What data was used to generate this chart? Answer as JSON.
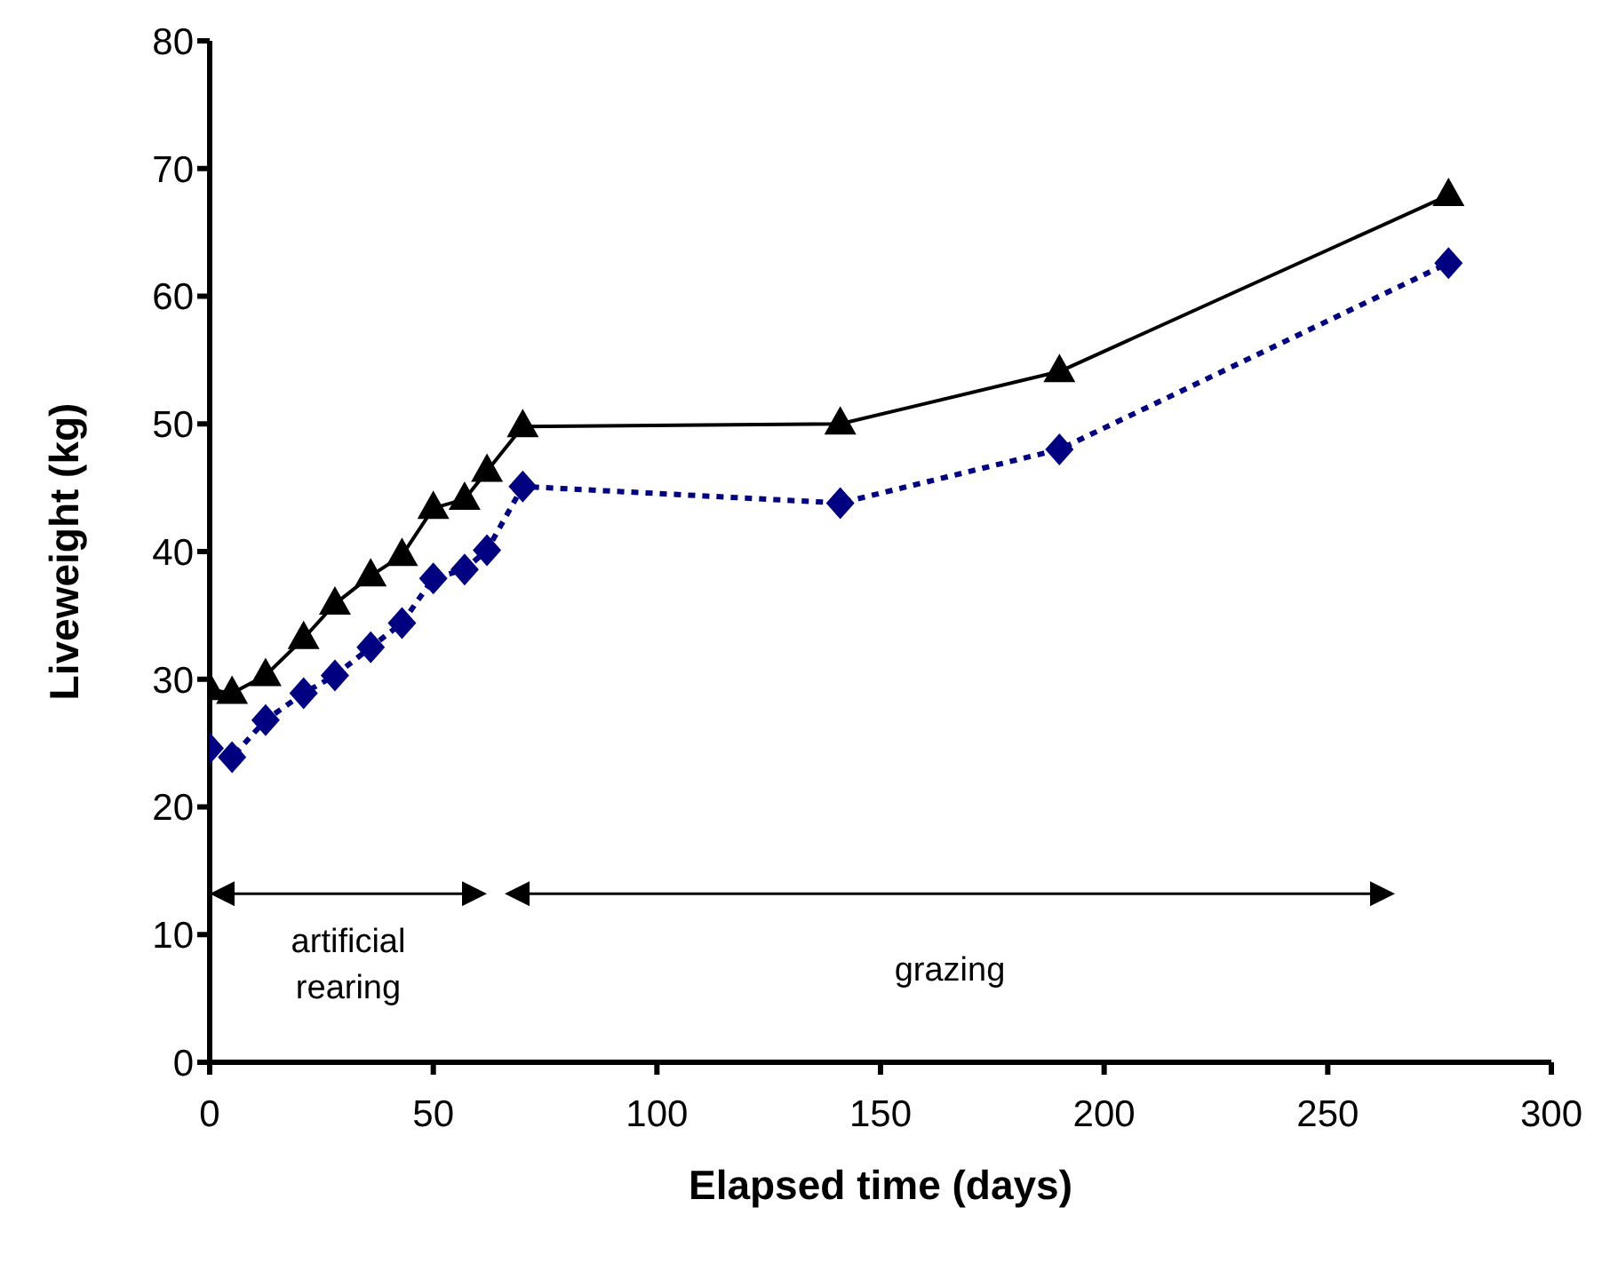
{
  "chart_data": {
    "type": "line",
    "xlabel": "Elapsed time (days)",
    "ylabel": "Liveweight (kg)",
    "x": [
      0,
      5,
      12.5,
      21,
      28,
      36,
      43,
      50,
      57,
      62,
      70,
      141,
      190,
      277
    ],
    "series": [
      {
        "color": "#000000",
        "marker": "triangle",
        "line_style": "solid",
        "values": [
          29.2,
          28.9,
          30.3,
          33.2,
          35.9,
          38.1,
          39.7,
          43.4,
          44.1,
          46.3,
          49.8,
          50.0,
          54.1,
          67.9
        ]
      },
      {
        "color": "#000080",
        "marker": "diamond",
        "line_style": "dotted",
        "values": [
          24.6,
          23.9,
          26.8,
          28.9,
          30.3,
          32.5,
          34.4,
          37.9,
          38.6,
          40.1,
          45.1,
          43.8,
          48.0,
          62.6
        ]
      }
    ],
    "xlim": [
      0,
      300
    ],
    "xticks": [
      0,
      50,
      100,
      150,
      200,
      250,
      300
    ],
    "ylim": [
      0,
      80
    ],
    "yticks": [
      0,
      10,
      20,
      30,
      40,
      50,
      60,
      70,
      80
    ],
    "annotations": [
      "artificial rearing",
      "grazing"
    ]
  }
}
